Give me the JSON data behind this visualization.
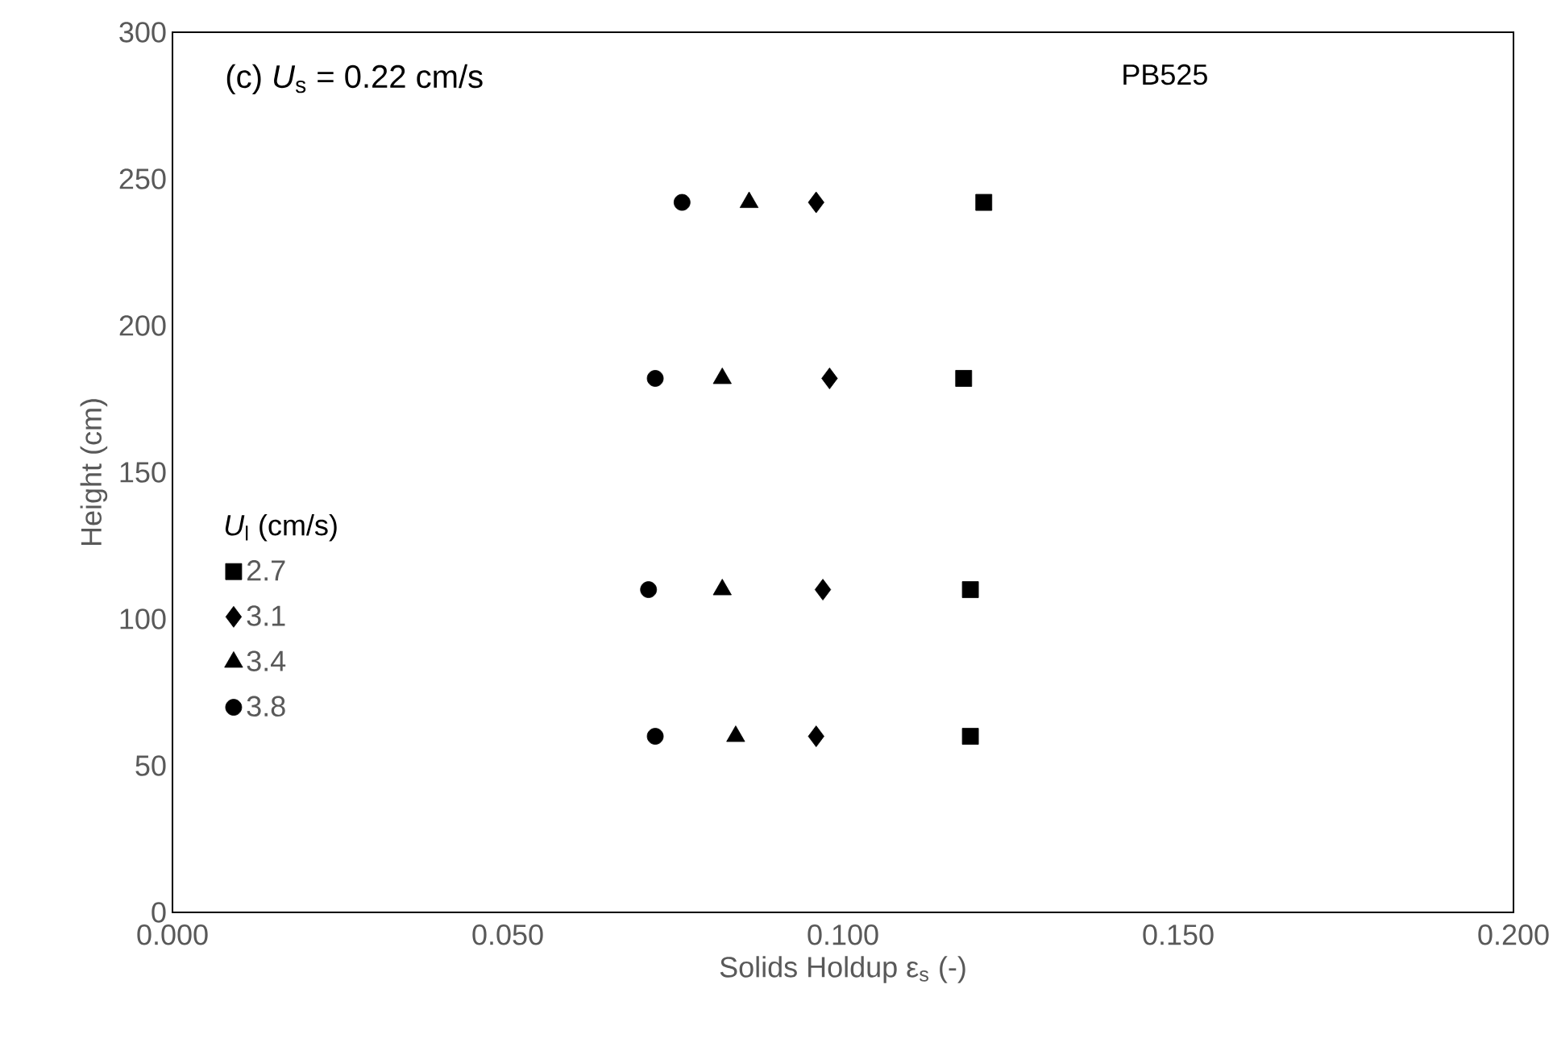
{
  "chart_data": {
    "type": "scatter",
    "annotations": [
      "(c) *U*$_{s}$ = 0.22  cm/s",
      "PB525"
    ],
    "xlabel": "Solids Holdup ε$_{s}$ (-)",
    "ylabel": "Height (cm)",
    "legend_title": "*U*$_{l}$ (cm/s)",
    "legend": "left",
    "xlim": [
      0,
      0.2
    ],
    "xticks": [
      {
        "value": 0,
        "label": "0.000"
      },
      {
        "value": 0.05,
        "label": "0.050"
      },
      {
        "value": 0.1,
        "label": "0.100"
      },
      {
        "value": 0.15,
        "label": "0.150"
      },
      {
        "value": 0.2,
        "label": "0.200"
      }
    ],
    "ylim": [
      0,
      300
    ],
    "yticks": [
      0,
      50,
      100,
      150,
      200,
      250,
      300
    ],
    "grid": false,
    "series": [
      {
        "name": "2.7",
        "color": "#000000",
        "marker": "square",
        "x": [
          0.121,
          0.118,
          0.119,
          0.119
        ],
        "values": [
          242,
          182,
          110,
          60
        ]
      },
      {
        "name": "3.1",
        "color": "#000000",
        "marker": "diamond",
        "x": [
          0.096,
          0.098,
          0.097,
          0.096
        ],
        "values": [
          242,
          182,
          110,
          60
        ]
      },
      {
        "name": "3.4",
        "color": "#000000",
        "marker": "triangle",
        "x": [
          0.086,
          0.082,
          0.082,
          0.084
        ],
        "values": [
          242,
          182,
          110,
          60
        ]
      },
      {
        "name": "3.8",
        "color": "#000000",
        "marker": "circle",
        "x": [
          0.076,
          0.072,
          0.071,
          0.072
        ],
        "values": [
          242,
          182,
          110,
          60
        ]
      }
    ]
  }
}
